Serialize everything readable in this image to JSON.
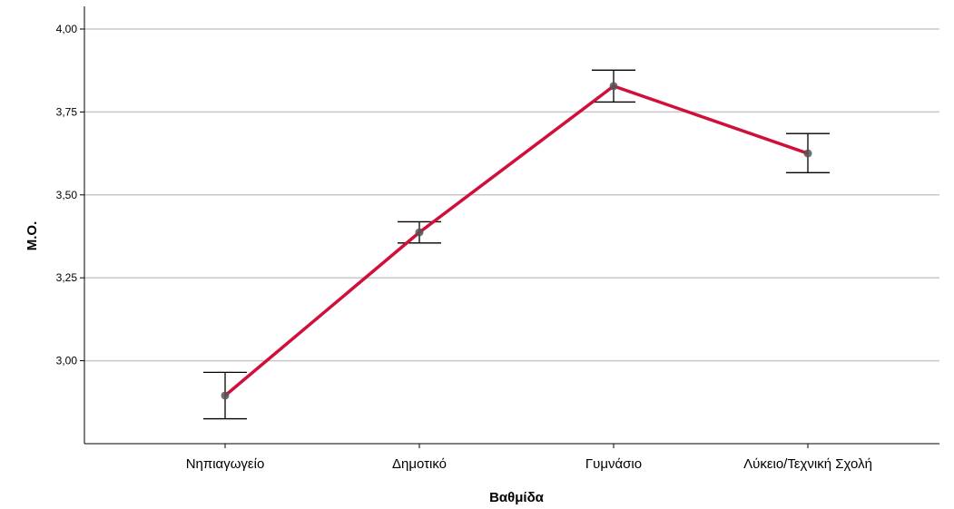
{
  "chart_data": {
    "type": "line",
    "title": "",
    "xlabel": "Βαθμίδα",
    "ylabel": "Μ.Ο.",
    "categories": [
      "Νηπιαγωγείο",
      "Δημοτικό",
      "Γυμνάσιο",
      "Λύκειο/Τεχνική Σχολή"
    ],
    "series": [
      {
        "values": [
          2.895,
          3.387,
          3.828,
          3.625
        ],
        "error_low": [
          2.825,
          3.355,
          3.78,
          3.567
        ],
        "error_high": [
          2.965,
          3.419,
          3.876,
          3.685
        ]
      }
    ],
    "yticks": [
      "3,00",
      "3,25",
      "3,50",
      "3,75",
      "4,00"
    ],
    "ytick_values": [
      3.0,
      3.25,
      3.5,
      3.75,
      4.0
    ],
    "ylim": [
      2.75,
      4.0
    ],
    "grid": true,
    "legend": "none",
    "colors": {
      "line": "#d0103a",
      "marker": "#555555",
      "errorbar": "#000000",
      "grid": "#c8c8c8",
      "axis": "#000000"
    }
  }
}
